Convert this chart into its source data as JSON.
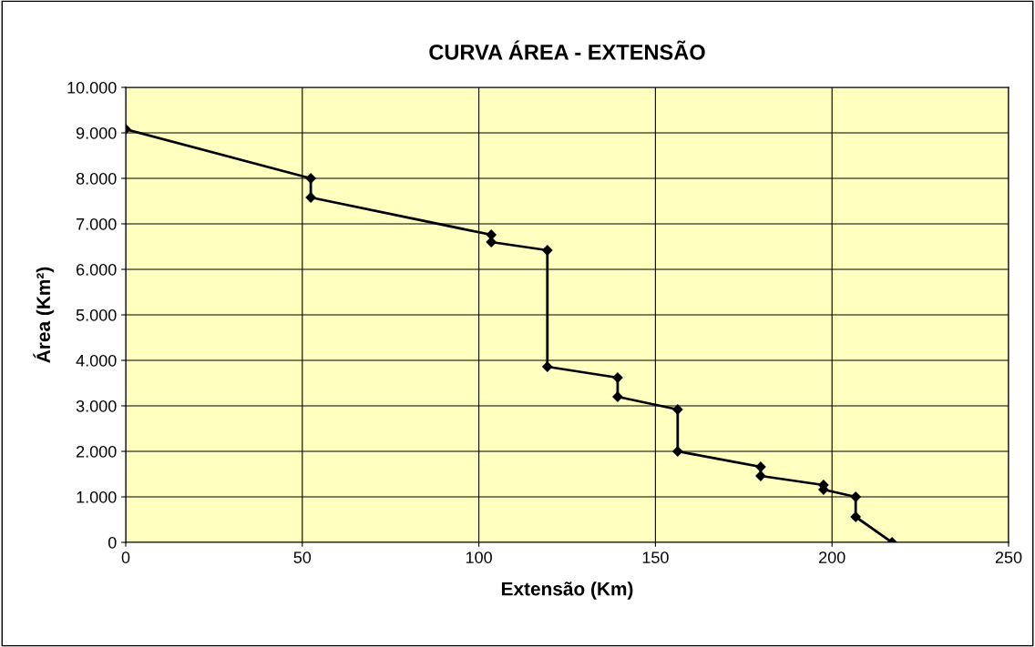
{
  "chart_data": {
    "type": "line",
    "title": "CURVA ÁREA - EXTENSÃO",
    "xlabel": "Extensão (Km)",
    "ylabel": "Área (Km²)",
    "x": [
      0,
      52.4,
      52.4,
      103.5,
      103.5,
      119.4,
      119.4,
      139.3,
      139.3,
      156.3,
      156.3,
      179.8,
      179.8,
      197.6,
      197.6,
      206.7,
      206.7,
      217
    ],
    "series": [
      {
        "color": "#000000",
        "values": [
          9080,
          8000,
          7580,
          6760,
          6600,
          6420,
          3860,
          3620,
          3200,
          2920,
          2000,
          1660,
          1460,
          1260,
          1160,
          1000,
          560,
          0
        ]
      }
    ],
    "xlim": [
      0,
      250
    ],
    "xticks": [
      0,
      50,
      100,
      150,
      200,
      250
    ],
    "ylim": [
      0,
      10000
    ],
    "yticks": [
      {
        "value": 0,
        "label": "0"
      },
      {
        "value": 1000,
        "label": "1.000"
      },
      {
        "value": 2000,
        "label": "2.000"
      },
      {
        "value": 3000,
        "label": "3.000"
      },
      {
        "value": 4000,
        "label": "4.000"
      },
      {
        "value": 5000,
        "label": "5.000"
      },
      {
        "value": 6000,
        "label": "6.000"
      },
      {
        "value": 7000,
        "label": "7.000"
      },
      {
        "value": 8000,
        "label": "8.000"
      },
      {
        "value": 9000,
        "label": "9.000"
      },
      {
        "value": 10000,
        "label": "10.000"
      }
    ],
    "grid": true,
    "marker": "diamond",
    "line_style": "solid"
  }
}
